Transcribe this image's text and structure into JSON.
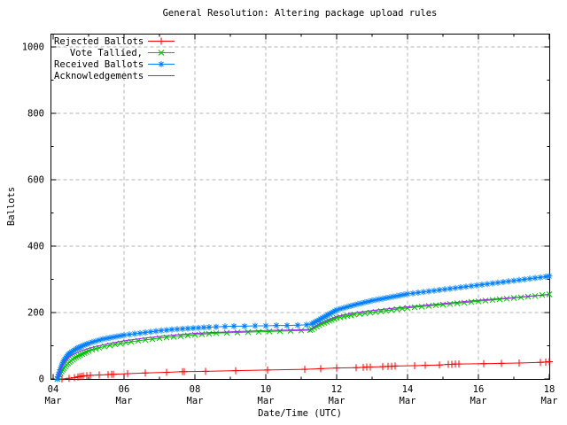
{
  "chart_data": {
    "type": "line",
    "title": "General Resolution: Altering package upload rules",
    "xlabel": "Date/Time (UTC)",
    "ylabel": "Ballots",
    "ylim": [
      0,
      1040
    ],
    "xlim_days": [
      0,
      14
    ],
    "grid": true,
    "legend_position": "top-left-inside",
    "colors": {
      "grid": "#b4b4b4",
      "border": "#000000",
      "text": "#000000",
      "background": "#ffffff"
    },
    "x_ticks": [
      {
        "d": 0,
        "l1": "04",
        "l2": "Mar"
      },
      {
        "d": 2,
        "l1": "06",
        "l2": "Mar"
      },
      {
        "d": 4,
        "l1": "08",
        "l2": "Mar"
      },
      {
        "d": 6,
        "l1": "10",
        "l2": "Mar"
      },
      {
        "d": 8,
        "l1": "12",
        "l2": "Mar"
      },
      {
        "d": 10,
        "l1": "14",
        "l2": "Mar"
      },
      {
        "d": 12,
        "l1": "16",
        "l2": "Mar"
      },
      {
        "d": 14,
        "l1": "18",
        "l2": "Mar"
      }
    ],
    "x_minor": [
      1,
      3,
      5,
      7,
      9,
      11,
      13
    ],
    "y_ticks": [
      {
        "v": 0,
        "label": "0"
      },
      {
        "v": 200,
        "label": "200"
      },
      {
        "v": 400,
        "label": "400"
      },
      {
        "v": 600,
        "label": "600"
      },
      {
        "v": 800,
        "label": "800"
      },
      {
        "v": 1000,
        "label": "1000"
      }
    ],
    "y_minor": [
      100,
      300,
      500,
      700,
      900
    ],
    "series": [
      {
        "name": "Rejected Ballots",
        "color": "#ff0000",
        "marker": "plus",
        "points": [
          [
            0.25,
            0
          ],
          [
            0.45,
            2
          ],
          [
            0.6,
            4
          ],
          [
            0.7,
            6
          ],
          [
            0.75,
            7
          ],
          [
            0.8,
            8
          ],
          [
            0.85,
            9
          ],
          [
            0.95,
            10
          ],
          [
            1.05,
            11
          ],
          [
            1.3,
            12
          ],
          [
            1.55,
            13
          ],
          [
            1.65,
            14
          ],
          [
            1.7,
            14
          ],
          [
            2.1,
            16
          ],
          [
            2.6,
            18
          ],
          [
            3.2,
            20
          ],
          [
            3.65,
            22
          ],
          [
            3.7,
            22
          ],
          [
            4.3,
            23
          ],
          [
            5.15,
            25
          ],
          [
            6.05,
            27
          ],
          [
            7.1,
            29
          ],
          [
            7.55,
            31
          ],
          [
            8.0,
            33
          ],
          [
            8.55,
            34
          ],
          [
            8.75,
            35
          ],
          [
            8.85,
            36
          ],
          [
            8.95,
            36
          ],
          [
            9.3,
            37
          ],
          [
            9.45,
            38
          ],
          [
            9.55,
            38
          ],
          [
            9.65,
            39
          ],
          [
            10.2,
            40
          ],
          [
            10.5,
            41
          ],
          [
            10.9,
            42
          ],
          [
            11.15,
            44
          ],
          [
            11.25,
            44
          ],
          [
            11.35,
            45
          ],
          [
            11.45,
            45
          ],
          [
            12.15,
            46
          ],
          [
            12.65,
            47
          ],
          [
            13.15,
            48
          ],
          [
            13.75,
            50
          ],
          [
            13.9,
            51
          ],
          [
            14.0,
            52
          ]
        ]
      },
      {
        "name": "Vote Tallied,",
        "color": "#00c000",
        "marker": "cross",
        "points": [
          [
            0.12,
            0
          ],
          [
            0.15,
            6
          ],
          [
            0.18,
            12
          ],
          [
            0.21,
            18
          ],
          [
            0.24,
            23
          ],
          [
            0.27,
            28
          ],
          [
            0.3,
            33
          ],
          [
            0.34,
            38
          ],
          [
            0.38,
            43
          ],
          [
            0.42,
            47
          ],
          [
            0.46,
            51
          ],
          [
            0.5,
            55
          ],
          [
            0.55,
            59
          ],
          [
            0.6,
            63
          ],
          [
            0.65,
            66
          ],
          [
            0.7,
            69
          ],
          [
            0.76,
            72
          ],
          [
            0.82,
            75
          ],
          [
            0.88,
            78
          ],
          [
            0.94,
            81
          ],
          [
            1.0,
            84
          ],
          [
            1.1,
            88
          ],
          [
            1.2,
            91
          ],
          [
            1.3,
            94
          ],
          [
            1.45,
            98
          ],
          [
            1.6,
            101
          ],
          [
            1.75,
            104
          ],
          [
            1.9,
            107
          ],
          [
            2.05,
            110
          ],
          [
            2.2,
            112
          ],
          [
            2.4,
            115
          ],
          [
            2.6,
            118
          ],
          [
            2.8,
            120
          ],
          [
            3.0,
            123
          ],
          [
            3.2,
            125
          ],
          [
            3.4,
            127
          ],
          [
            3.6,
            129
          ],
          [
            3.8,
            131
          ],
          [
            4.0,
            133
          ],
          [
            4.2,
            135
          ],
          [
            4.4,
            136
          ],
          [
            4.6,
            138
          ],
          [
            4.9,
            139
          ],
          [
            5.2,
            140
          ],
          [
            5.5,
            141
          ],
          [
            5.8,
            142
          ],
          [
            6.1,
            143
          ],
          [
            6.4,
            144
          ],
          [
            6.7,
            145
          ],
          [
            7.0,
            146
          ],
          [
            7.25,
            147
          ],
          [
            7.3,
            150
          ],
          [
            7.37,
            154
          ],
          [
            7.44,
            158
          ],
          [
            7.51,
            162
          ],
          [
            7.58,
            166
          ],
          [
            7.65,
            169
          ],
          [
            7.72,
            172
          ],
          [
            7.79,
            175
          ],
          [
            7.86,
            178
          ],
          [
            7.93,
            181
          ],
          [
            8.0,
            184
          ],
          [
            8.1,
            186
          ],
          [
            8.2,
            188
          ],
          [
            8.3,
            190
          ],
          [
            8.4,
            192
          ],
          [
            8.5,
            194
          ],
          [
            8.65,
            196
          ],
          [
            8.8,
            198
          ],
          [
            8.95,
            200
          ],
          [
            9.1,
            202
          ],
          [
            9.25,
            204
          ],
          [
            9.4,
            206
          ],
          [
            9.55,
            208
          ],
          [
            9.7,
            210
          ],
          [
            9.85,
            212
          ],
          [
            10.0,
            214
          ],
          [
            10.2,
            216
          ],
          [
            10.4,
            218
          ],
          [
            10.6,
            220
          ],
          [
            10.8,
            222
          ],
          [
            11.0,
            224
          ],
          [
            11.2,
            226
          ],
          [
            11.4,
            228
          ],
          [
            11.6,
            230
          ],
          [
            11.8,
            232
          ],
          [
            12.0,
            234
          ],
          [
            12.2,
            236
          ],
          [
            12.4,
            238
          ],
          [
            12.6,
            240
          ],
          [
            12.8,
            242
          ],
          [
            13.0,
            244
          ],
          [
            13.2,
            246
          ],
          [
            13.4,
            248
          ],
          [
            13.6,
            250
          ],
          [
            13.8,
            253
          ],
          [
            14.0,
            255
          ]
        ]
      },
      {
        "name": "Received Ballots",
        "color": "#0080ff",
        "marker": "asterisk",
        "points": [
          [
            0.12,
            0
          ],
          [
            0.14,
            7
          ],
          [
            0.16,
            14
          ],
          [
            0.18,
            21
          ],
          [
            0.2,
            28
          ],
          [
            0.22,
            34
          ],
          [
            0.24,
            40
          ],
          [
            0.26,
            45
          ],
          [
            0.28,
            50
          ],
          [
            0.3,
            55
          ],
          [
            0.33,
            60
          ],
          [
            0.36,
            64
          ],
          [
            0.39,
            68
          ],
          [
            0.42,
            72
          ],
          [
            0.45,
            75
          ],
          [
            0.48,
            78
          ],
          [
            0.52,
            81
          ],
          [
            0.56,
            84
          ],
          [
            0.6,
            87
          ],
          [
            0.64,
            90
          ],
          [
            0.68,
            92
          ],
          [
            0.72,
            94
          ],
          [
            0.76,
            96
          ],
          [
            0.8,
            98
          ],
          [
            0.85,
            101
          ],
          [
            0.9,
            103
          ],
          [
            0.95,
            105
          ],
          [
            1.0,
            107
          ],
          [
            1.1,
            111
          ],
          [
            1.2,
            114
          ],
          [
            1.3,
            117
          ],
          [
            1.4,
            120
          ],
          [
            1.5,
            122
          ],
          [
            1.6,
            124
          ],
          [
            1.7,
            126
          ],
          [
            1.8,
            128
          ],
          [
            1.9,
            130
          ],
          [
            2.0,
            132
          ],
          [
            2.15,
            134
          ],
          [
            2.3,
            136
          ],
          [
            2.45,
            138
          ],
          [
            2.6,
            140
          ],
          [
            2.75,
            142
          ],
          [
            2.9,
            144
          ],
          [
            3.05,
            146
          ],
          [
            3.2,
            147
          ],
          [
            3.35,
            149
          ],
          [
            3.5,
            150
          ],
          [
            3.65,
            151
          ],
          [
            3.8,
            152
          ],
          [
            3.95,
            153
          ],
          [
            4.1,
            154
          ],
          [
            4.25,
            155
          ],
          [
            4.4,
            156
          ],
          [
            4.6,
            157
          ],
          [
            4.85,
            158
          ],
          [
            5.1,
            159
          ],
          [
            5.4,
            159
          ],
          [
            5.7,
            160
          ],
          [
            6.0,
            160
          ],
          [
            6.3,
            161
          ],
          [
            6.6,
            161
          ],
          [
            6.9,
            162
          ],
          [
            7.15,
            163
          ],
          [
            7.3,
            166
          ],
          [
            7.35,
            169
          ],
          [
            7.4,
            172
          ],
          [
            7.45,
            175
          ],
          [
            7.5,
            178
          ],
          [
            7.55,
            181
          ],
          [
            7.6,
            184
          ],
          [
            7.65,
            187
          ],
          [
            7.7,
            190
          ],
          [
            7.75,
            193
          ],
          [
            7.8,
            196
          ],
          [
            7.85,
            199
          ],
          [
            7.9,
            202
          ],
          [
            7.95,
            205
          ],
          [
            8.0,
            208
          ],
          [
            8.1,
            211
          ],
          [
            8.2,
            214
          ],
          [
            8.3,
            217
          ],
          [
            8.4,
            220
          ],
          [
            8.5,
            223
          ],
          [
            8.6,
            226
          ],
          [
            8.7,
            228
          ],
          [
            8.8,
            231
          ],
          [
            8.9,
            233
          ],
          [
            9.0,
            236
          ],
          [
            9.1,
            238
          ],
          [
            9.2,
            240
          ],
          [
            9.3,
            242
          ],
          [
            9.4,
            244
          ],
          [
            9.5,
            246
          ],
          [
            9.6,
            248
          ],
          [
            9.7,
            250
          ],
          [
            9.8,
            252
          ],
          [
            9.9,
            254
          ],
          [
            10.0,
            256
          ],
          [
            10.15,
            258
          ],
          [
            10.3,
            260
          ],
          [
            10.45,
            262
          ],
          [
            10.6,
            264
          ],
          [
            10.75,
            266
          ],
          [
            10.9,
            268
          ],
          [
            11.05,
            270
          ],
          [
            11.2,
            272
          ],
          [
            11.35,
            274
          ],
          [
            11.5,
            276
          ],
          [
            11.65,
            278
          ],
          [
            11.8,
            280
          ],
          [
            11.95,
            282
          ],
          [
            12.1,
            284
          ],
          [
            12.25,
            286
          ],
          [
            12.4,
            288
          ],
          [
            12.55,
            290
          ],
          [
            12.7,
            292
          ],
          [
            12.85,
            294
          ],
          [
            13.0,
            296
          ],
          [
            13.15,
            298
          ],
          [
            13.3,
            300
          ],
          [
            13.45,
            302
          ],
          [
            13.6,
            304
          ],
          [
            13.75,
            306
          ],
          [
            13.9,
            308
          ],
          [
            14.0,
            310
          ]
        ]
      },
      {
        "name": "Acknowledgements",
        "color": "#a020f0",
        "marker": "none",
        "points": [
          [
            0.12,
            0
          ],
          [
            0.2,
            28
          ],
          [
            0.3,
            48
          ],
          [
            0.4,
            62
          ],
          [
            0.5,
            70
          ],
          [
            0.65,
            78
          ],
          [
            0.8,
            85
          ],
          [
            1.0,
            92
          ],
          [
            1.2,
            98
          ],
          [
            1.5,
            105
          ],
          [
            2.0,
            115
          ],
          [
            2.5,
            122
          ],
          [
            3.0,
            128
          ],
          [
            3.5,
            133
          ],
          [
            4.0,
            137
          ],
          [
            4.5,
            140
          ],
          [
            5.0,
            142
          ],
          [
            5.5,
            144
          ],
          [
            6.0,
            146
          ],
          [
            6.5,
            147
          ],
          [
            7.0,
            148
          ],
          [
            7.25,
            149
          ],
          [
            7.5,
            166
          ],
          [
            7.75,
            178
          ],
          [
            8.0,
            188
          ],
          [
            8.25,
            194
          ],
          [
            8.5,
            199
          ],
          [
            9.0,
            206
          ],
          [
            9.5,
            212
          ],
          [
            10.0,
            217
          ],
          [
            10.5,
            222
          ],
          [
            11.0,
            227
          ],
          [
            11.5,
            232
          ],
          [
            12.0,
            237
          ],
          [
            12.5,
            241
          ],
          [
            13.0,
            245
          ],
          [
            13.5,
            250
          ],
          [
            14.0,
            254
          ]
        ]
      }
    ]
  }
}
